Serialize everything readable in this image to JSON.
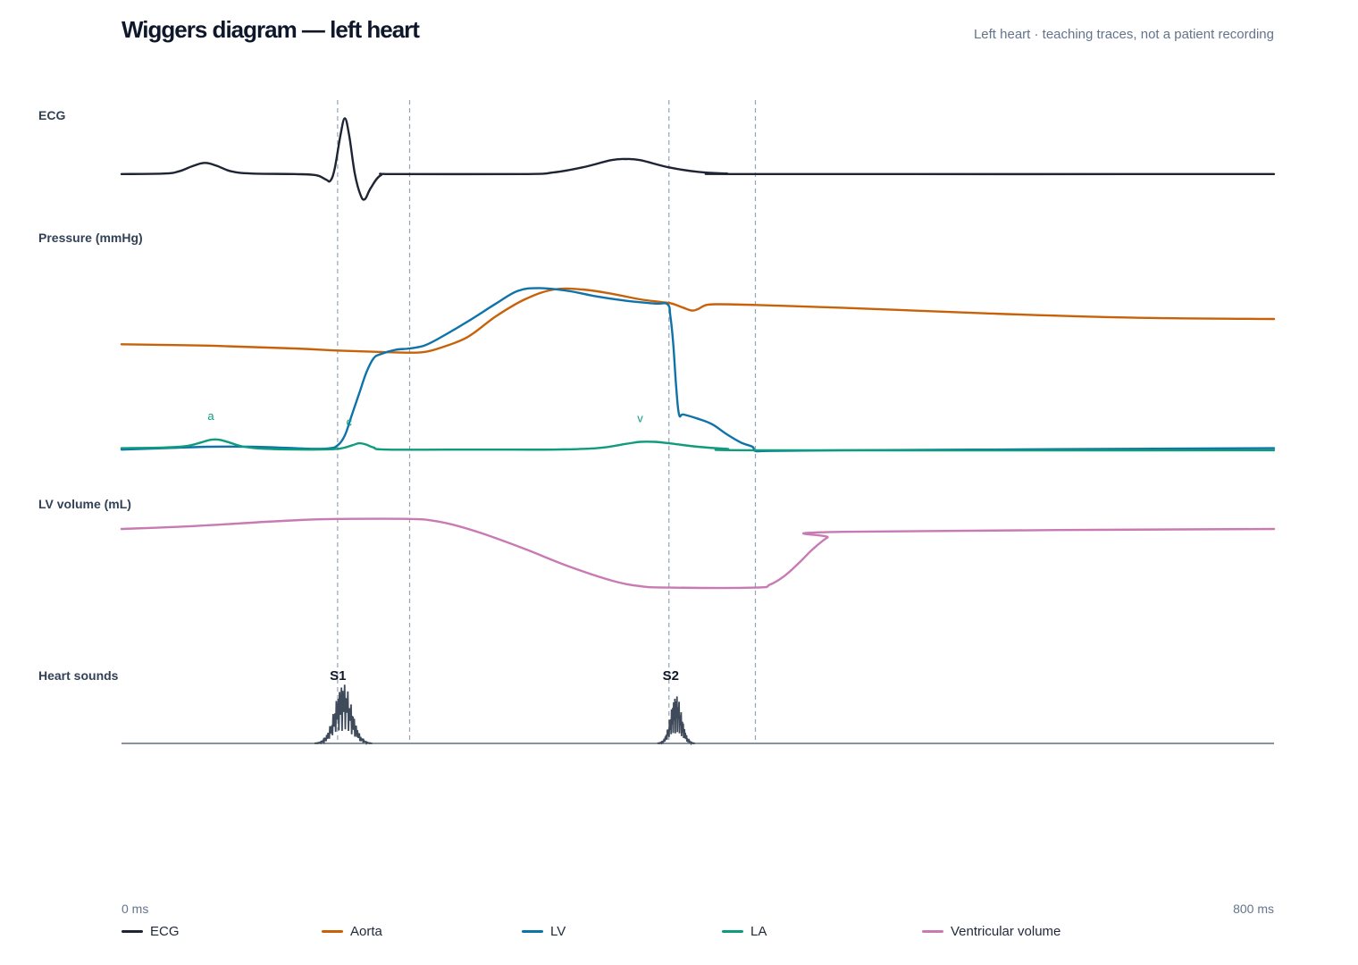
{
  "header": {
    "title": "Wiggers diagram — left heart",
    "subtitle": "Left heart · teaching traces, not a patient recording"
  },
  "chart_data": {
    "type": "line",
    "x_unit": "ms",
    "x_range": [
      0,
      800
    ],
    "x_tick_labels": [
      "0 ms",
      "800 ms"
    ],
    "event_markers_ms": [
      150,
      200,
      380,
      440
    ],
    "panels": [
      {
        "key": "ecg",
        "label": "ECG",
        "y_range": [
          -0.5,
          1.2
        ],
        "series": [
          {
            "name": "ECG",
            "color": "#1e2433",
            "points": [
              [
                0,
                0
              ],
              [
                30,
                0.01
              ],
              [
                40,
                0.05
              ],
              [
                50,
                0.15
              ],
              [
                58,
                0.2
              ],
              [
                66,
                0.15
              ],
              [
                76,
                0.05
              ],
              [
                90,
                0.01
              ],
              [
                120,
                0
              ],
              [
                135,
                -0.02
              ],
              [
                142,
                -0.1
              ],
              [
                145,
                -0.12
              ],
              [
                148,
                0.1
              ],
              [
                152,
                0.7
              ],
              [
                155,
                1.0
              ],
              [
                158,
                0.7
              ],
              [
                162,
                0.0
              ],
              [
                166,
                -0.38
              ],
              [
                169,
                -0.45
              ],
              [
                173,
                -0.25
              ],
              [
                180,
                -0.02
              ],
              [
                190,
                0
              ],
              [
                280,
                0
              ],
              [
                300,
                0.03
              ],
              [
                320,
                0.12
              ],
              [
                340,
                0.25
              ],
              [
                350,
                0.27
              ],
              [
                360,
                0.25
              ],
              [
                380,
                0.12
              ],
              [
                400,
                0.04
              ],
              [
                420,
                0.01
              ],
              [
                440,
                0
              ],
              [
                800,
                0
              ]
            ]
          }
        ]
      },
      {
        "key": "pressure",
        "label": "Pressure (mmHg)",
        "y_range": [
          0,
          140
        ],
        "series": [
          {
            "name": "Aorta",
            "color": "#c8620a",
            "points": [
              [
                0,
                80
              ],
              [
                60,
                79
              ],
              [
                120,
                77
              ],
              [
                150,
                75.5
              ],
              [
                180,
                74.5
              ],
              [
                200,
                74
              ],
              [
                210,
                74.5
              ],
              [
                220,
                77
              ],
              [
                240,
                85
              ],
              [
                260,
                100
              ],
              [
                280,
                112
              ],
              [
                300,
                119
              ],
              [
                320,
                119
              ],
              [
                340,
                116
              ],
              [
                360,
                112
              ],
              [
                375,
                110
              ],
              [
                382,
                109
              ],
              [
                390,
                106
              ],
              [
                396,
                104
              ],
              [
                400,
                105
              ],
              [
                406,
                108
              ],
              [
                415,
                108.5
              ],
              [
                440,
                108
              ],
              [
                500,
                106
              ],
              [
                600,
                102
              ],
              [
                700,
                99
              ],
              [
                800,
                98
              ]
            ]
          },
          {
            "name": "LV",
            "color": "#0e73a8",
            "points": [
              [
                0,
                5
              ],
              [
                30,
                6
              ],
              [
                60,
                7
              ],
              [
                90,
                7
              ],
              [
                120,
                6
              ],
              [
                135,
                5.5
              ],
              [
                145,
                6
              ],
              [
                150,
                8
              ],
              [
                155,
                15
              ],
              [
                160,
                30
              ],
              [
                165,
                45
              ],
              [
                170,
                60
              ],
              [
                175,
                70
              ],
              [
                180,
                73
              ],
              [
                190,
                76
              ],
              [
                200,
                77
              ],
              [
                210,
                79
              ],
              [
                220,
                84
              ],
              [
                240,
                96
              ],
              [
                260,
                109
              ],
              [
                275,
                118
              ],
              [
                290,
                120
              ],
              [
                310,
                118
              ],
              [
                330,
                114
              ],
              [
                350,
                111
              ],
              [
                370,
                109
              ],
              [
                379,
                108.5
              ],
              [
                381,
                100
              ],
              [
                383,
                80
              ],
              [
                385,
                50
              ],
              [
                387,
                30
              ],
              [
                390,
                30
              ],
              [
                400,
                27
              ],
              [
                410,
                23
              ],
              [
                420,
                16
              ],
              [
                430,
                10
              ],
              [
                438,
                7
              ],
              [
                440,
                4
              ],
              [
                450,
                4
              ],
              [
                500,
                4.5
              ],
              [
                600,
                5
              ],
              [
                700,
                5.5
              ],
              [
                800,
                6
              ]
            ]
          },
          {
            "name": "LA",
            "color": "#0f9b7d",
            "points": [
              [
                0,
                6
              ],
              [
                30,
                6.5
              ],
              [
                45,
                7.5
              ],
              [
                55,
                10
              ],
              [
                62,
                12
              ],
              [
                68,
                12
              ],
              [
                75,
                10
              ],
              [
                85,
                7
              ],
              [
                100,
                5.5
              ],
              [
                130,
                5
              ],
              [
                150,
                5.5
              ],
              [
                160,
                8
              ],
              [
                165,
                9.5
              ],
              [
                170,
                8.5
              ],
              [
                175,
                6.5
              ],
              [
                185,
                5
              ],
              [
                250,
                5
              ],
              [
                300,
                5
              ],
              [
                330,
                6
              ],
              [
                350,
                9
              ],
              [
                360,
                10.5
              ],
              [
                370,
                10.5
              ],
              [
                380,
                9.5
              ],
              [
                400,
                7
              ],
              [
                420,
                5.5
              ],
              [
                450,
                4.5
              ],
              [
                800,
                4.5
              ]
            ]
          }
        ],
        "annotations": [
          {
            "text": "a",
            "x": 62
          },
          {
            "text": "c",
            "x": 158
          },
          {
            "text": "v",
            "x": 360
          }
        ]
      },
      {
        "key": "volume",
        "label": "LV volume (mL)",
        "y_range": [
          40,
          140
        ],
        "series": [
          {
            "name": "Ventricular volume",
            "color": "#c97ab3",
            "points": [
              [
                0,
                120
              ],
              [
                50,
                122
              ],
              [
                100,
                125
              ],
              [
                130,
                126.5
              ],
              [
                150,
                127
              ],
              [
                200,
                127
              ],
              [
                215,
                126
              ],
              [
                230,
                123
              ],
              [
                250,
                117
              ],
              [
                280,
                106
              ],
              [
                310,
                94
              ],
              [
                340,
                84
              ],
              [
                360,
                80
              ],
              [
                380,
                79
              ],
              [
                440,
                79
              ],
              [
                450,
                81
              ],
              [
                460,
                87
              ],
              [
                470,
                96
              ],
              [
                480,
                106
              ],
              [
                490,
                114
              ],
              [
                500,
                118
              ],
              [
                800,
                120
              ]
            ]
          }
        ]
      },
      {
        "key": "sounds",
        "label": "Heart sounds",
        "bursts": [
          {
            "label": "S1",
            "center_ms": 154,
            "width_ms": 20,
            "amplitude": 1.0
          },
          {
            "label": "S2",
            "center_ms": 385,
            "width_ms": 13,
            "amplitude": 0.8
          }
        ]
      }
    ],
    "legend": [
      {
        "name": "ECG",
        "color": "#1e2433"
      },
      {
        "name": "Aorta",
        "color": "#c8620a"
      },
      {
        "name": "LV",
        "color": "#0e73a8"
      },
      {
        "name": "LA",
        "color": "#0f9b7d"
      },
      {
        "name": "Ventricular volume",
        "color": "#c97ab3"
      }
    ],
    "legend_placement": "bottom",
    "grid": false
  }
}
